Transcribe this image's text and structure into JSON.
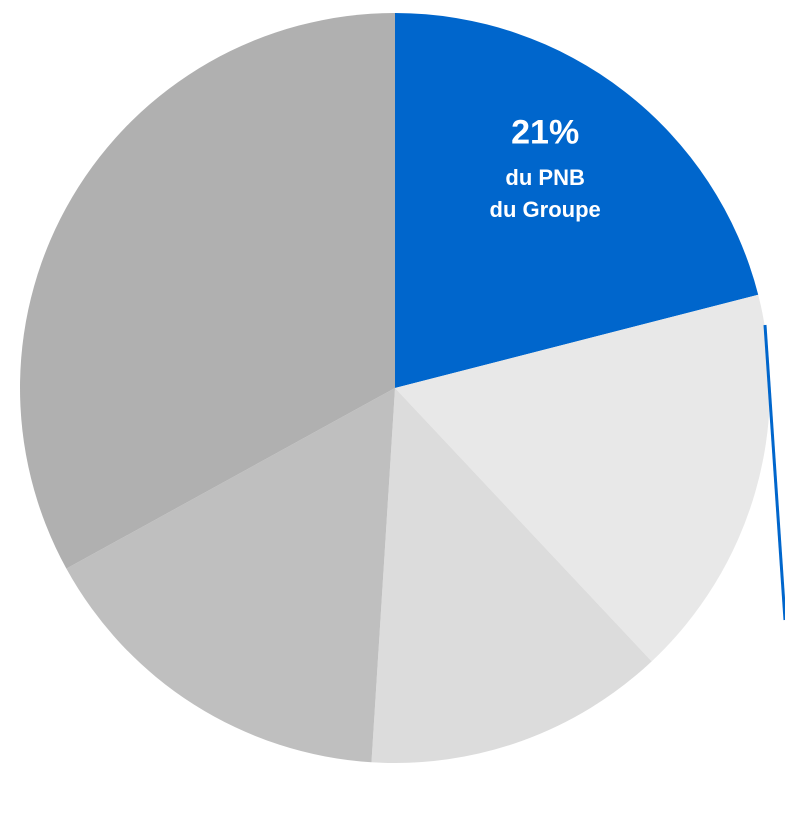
{
  "chart_data": {
    "type": "pie",
    "categories": [
      null,
      null,
      null,
      null,
      null
    ],
    "values": [
      21,
      17,
      13,
      16,
      33
    ],
    "value_labels": [
      "21%",
      null,
      null,
      null,
      null
    ],
    "colors": [
      "#0066cc",
      "#e8e8e8",
      "#dcdcdc",
      "#bfbfbf",
      "#b0b0b0"
    ],
    "annotations": [
      "du PNB",
      "du Groupe"
    ]
  }
}
